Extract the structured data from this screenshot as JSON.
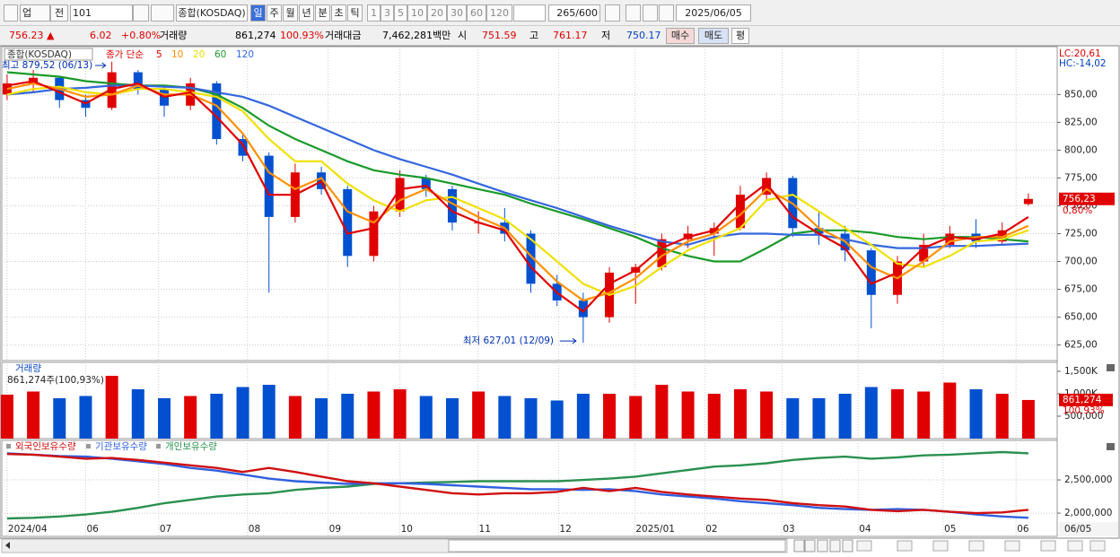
{
  "toolbar": {
    "market": "업",
    "prev": "전",
    "code": "101",
    "name": "종합(KOSDAQ)",
    "periods": [
      "일",
      "주",
      "월",
      "년",
      "분",
      "초",
      "틱"
    ],
    "intervals": [
      "1",
      "3",
      "5",
      "10",
      "20",
      "30",
      "60",
      "120"
    ],
    "count": "265/600",
    "date": "2025/06/05"
  },
  "info": {
    "price": "756.23 ▲",
    "change": "6.02",
    "change_pct": "+0.80%",
    "volume_label": "거래량",
    "volume": "861,274",
    "volume_pct": "100.93%",
    "amount_label": "거래대금",
    "amount": "7,462,281백만",
    "open_label": "시",
    "open": "751.59",
    "high_label": "고",
    "high": "761.17",
    "low_label": "저",
    "low": "750.17",
    "buttons": [
      "매수",
      "매도",
      "평"
    ]
  },
  "chart_data": [
    {
      "type": "candlestick",
      "title": "종합(KOSDAQ)",
      "subtitle": "종가 단순",
      "up_color": "#e00000",
      "down_color": "#0050d0",
      "open": [
        850,
        860,
        865,
        845,
        838,
        870,
        855,
        840,
        860,
        810,
        795,
        740,
        780,
        765,
        705,
        745,
        775,
        765,
        735,
        735,
        725,
        680,
        665,
        650,
        690,
        695,
        720,
        725,
        730,
        760,
        775,
        730,
        725,
        710,
        670,
        700,
        715,
        725,
        718,
        751.59
      ],
      "high": [
        868,
        872,
        866,
        850,
        879.52,
        872,
        858,
        865,
        862,
        815,
        798,
        788,
        785,
        768,
        750,
        782,
        778,
        768,
        745,
        748,
        728,
        688,
        672,
        695,
        698,
        725,
        732,
        735,
        768,
        780,
        777,
        745,
        732,
        712,
        705,
        725,
        732,
        738,
        735,
        761.17
      ],
      "low": [
        845,
        852,
        838,
        830,
        836,
        850,
        830,
        836,
        805,
        790,
        672,
        735,
        760,
        695,
        700,
        740,
        758,
        728,
        725,
        718,
        672,
        660,
        627.01,
        645,
        662,
        692,
        712,
        705,
        728,
        755,
        722,
        715,
        700,
        640,
        662,
        695,
        712,
        712,
        715,
        750.17
      ],
      "close": [
        860,
        865,
        845,
        838,
        870,
        855,
        840,
        860,
        810,
        795,
        740,
        780,
        765,
        705,
        745,
        775,
        765,
        735,
        735,
        725,
        680,
        665,
        650,
        690,
        695,
        720,
        725,
        730,
        760,
        775,
        730,
        725,
        710,
        670,
        700,
        715,
        725,
        718,
        728,
        756.23
      ],
      "series": [
        {
          "name": "5",
          "color": "#e00000",
          "values": [
            858,
            862,
            852,
            842,
            855,
            860,
            848,
            852,
            830,
            805,
            760,
            760,
            772,
            725,
            730,
            765,
            768,
            745,
            735,
            728,
            695,
            672,
            655,
            680,
            692,
            712,
            722,
            728,
            752,
            770,
            740,
            725,
            712,
            680,
            690,
            712,
            722,
            720,
            725,
            740
          ]
        },
        {
          "name": "10",
          "color": "#ff9000",
          "values": [
            855,
            860,
            855,
            848,
            850,
            858,
            850,
            850,
            840,
            815,
            780,
            765,
            775,
            745,
            735,
            755,
            765,
            752,
            740,
            730,
            705,
            682,
            665,
            672,
            685,
            705,
            718,
            725,
            742,
            765,
            752,
            730,
            718,
            695,
            685,
            700,
            718,
            722,
            722,
            732
          ]
        },
        {
          "name": "20",
          "color": "#f0e000",
          "values": [
            850,
            855,
            857,
            852,
            850,
            855,
            855,
            852,
            848,
            835,
            810,
            790,
            790,
            770,
            755,
            745,
            755,
            758,
            748,
            738,
            720,
            700,
            680,
            670,
            678,
            695,
            710,
            720,
            730,
            755,
            760,
            745,
            730,
            715,
            698,
            695,
            705,
            718,
            720,
            728
          ]
        },
        {
          "name": "60",
          "color": "#1a9a2a",
          "values": [
            870,
            868,
            866,
            862,
            860,
            858,
            858,
            856,
            850,
            838,
            822,
            810,
            800,
            790,
            782,
            778,
            775,
            770,
            765,
            760,
            752,
            745,
            738,
            730,
            722,
            712,
            705,
            700,
            700,
            712,
            725,
            728,
            728,
            726,
            722,
            720,
            722,
            722,
            720,
            718
          ]
        },
        {
          "name": "120",
          "color": "#3366dd",
          "values": [
            850,
            852,
            855,
            856,
            858,
            858,
            857,
            856,
            852,
            848,
            840,
            830,
            820,
            810,
            800,
            792,
            785,
            778,
            770,
            762,
            755,
            748,
            740,
            732,
            725,
            718,
            715,
            722,
            725,
            725,
            724,
            724,
            720,
            715,
            712,
            712,
            714,
            714,
            715,
            716
          ]
        }
      ],
      "ylim": [
        611,
        893
      ],
      "yticks": [
        {
          "value": 625,
          "label": "625,00"
        },
        {
          "value": 650,
          "label": "650,00"
        },
        {
          "value": 675,
          "label": "675,00"
        },
        {
          "value": 700,
          "label": "700,00"
        },
        {
          "value": 725,
          "label": "725,00"
        },
        {
          "value": 750,
          "label": "750,00"
        },
        {
          "value": 775,
          "label": "775,00"
        },
        {
          "value": 800,
          "label": "800,00"
        },
        {
          "value": 825,
          "label": "825,00"
        },
        {
          "value": 850,
          "label": "850,00"
        }
      ],
      "grid": true,
      "annotations": {
        "high": "최고 879,52 (06/13)",
        "low": "최저 627,01 (12/09)",
        "lc": "LC:20,61",
        "hc": "HC:-14,02"
      },
      "last_label": "756,23",
      "last_change": "0,80%"
    },
    {
      "type": "bar",
      "title": "거래량",
      "subtitle": "861,274주(100,93%)",
      "values": [
        980000,
        1050000,
        900000,
        950000,
        1400000,
        1100000,
        900000,
        950000,
        1000000,
        1150000,
        1200000,
        950000,
        900000,
        1000000,
        1050000,
        1100000,
        950000,
        900000,
        1050000,
        950000,
        900000,
        850000,
        1000000,
        1000000,
        950000,
        1200000,
        1050000,
        1000000,
        1100000,
        1050000,
        900000,
        900000,
        1000000,
        1150000,
        1100000,
        1050000,
        1250000,
        1100000,
        1000000,
        861274
      ],
      "ylim": [
        0,
        1700000
      ],
      "yticks": [
        {
          "value": 500000,
          "label": "500,000"
        },
        {
          "value": 1000000,
          "label": "1,000K"
        },
        {
          "value": 1500000,
          "label": "1,500K"
        }
      ],
      "last_label": "861,274",
      "last_change": "100,93%"
    },
    {
      "type": "line",
      "series": [
        {
          "name": "외국인보유수량",
          "color": "#d01010",
          "values": [
            2890000,
            2880000,
            2850000,
            2820000,
            2830000,
            2800000,
            2760000,
            2720000,
            2680000,
            2620000,
            2680000,
            2620000,
            2550000,
            2480000,
            2450000,
            2400000,
            2350000,
            2300000,
            2280000,
            2300000,
            2300000,
            2320000,
            2380000,
            2330000,
            2380000,
            2320000,
            2280000,
            2250000,
            2220000,
            2200000,
            2150000,
            2120000,
            2100000,
            2050000,
            2030000,
            2050000,
            2020000,
            2000000,
            2010000,
            2050000
          ]
        },
        {
          "name": "기관보유수량",
          "color": "#3060e0",
          "values": [
            2900000,
            2880000,
            2860000,
            2850000,
            2820000,
            2780000,
            2740000,
            2680000,
            2640000,
            2580000,
            2520000,
            2480000,
            2460000,
            2440000,
            2450000,
            2450000,
            2440000,
            2420000,
            2400000,
            2380000,
            2360000,
            2360000,
            2350000,
            2360000,
            2330000,
            2280000,
            2250000,
            2220000,
            2180000,
            2150000,
            2120000,
            2080000,
            2060000,
            2050000,
            2060000,
            2050000,
            2020000,
            1980000,
            1950000,
            1930000
          ]
        },
        {
          "name": "개인보유수량",
          "color": "#2a9050",
          "values": [
            1920000,
            1930000,
            1950000,
            1980000,
            2020000,
            2080000,
            2150000,
            2200000,
            2250000,
            2280000,
            2300000,
            2350000,
            2380000,
            2400000,
            2440000,
            2450000,
            2460000,
            2470000,
            2480000,
            2480000,
            2480000,
            2480000,
            2500000,
            2520000,
            2550000,
            2600000,
            2650000,
            2700000,
            2720000,
            2750000,
            2800000,
            2830000,
            2850000,
            2820000,
            2840000,
            2870000,
            2880000,
            2900000,
            2920000,
            2900000
          ]
        }
      ],
      "ylim": [
        1650000,
        3095000
      ],
      "yticks": [
        {
          "value": 2000000,
          "label": "2,000,000"
        },
        {
          "value": 2500000,
          "label": "2,500,000"
        }
      ],
      "xlim": [
        -0.1,
        40.1
      ],
      "xticks": [
        {
          "value": 0,
          "label": "2024/04"
        },
        {
          "value": 3,
          "label": "06"
        },
        {
          "value": 5.79,
          "label": "07"
        },
        {
          "value": 9.18,
          "label": "08"
        },
        {
          "value": 12.26,
          "label": "09"
        },
        {
          "value": 15,
          "label": "10"
        },
        {
          "value": 17.98,
          "label": "11"
        },
        {
          "value": 21.06,
          "label": "12"
        },
        {
          "value": 23.97,
          "label": "2025/01"
        },
        {
          "value": 26.64,
          "label": "02"
        },
        {
          "value": 29.59,
          "label": "03"
        },
        {
          "value": 32.5,
          "label": "04"
        },
        {
          "value": 35.75,
          "label": "05"
        },
        {
          "value": 38.53,
          "label": "06"
        }
      ],
      "cursor_label": "06/05"
    }
  ]
}
